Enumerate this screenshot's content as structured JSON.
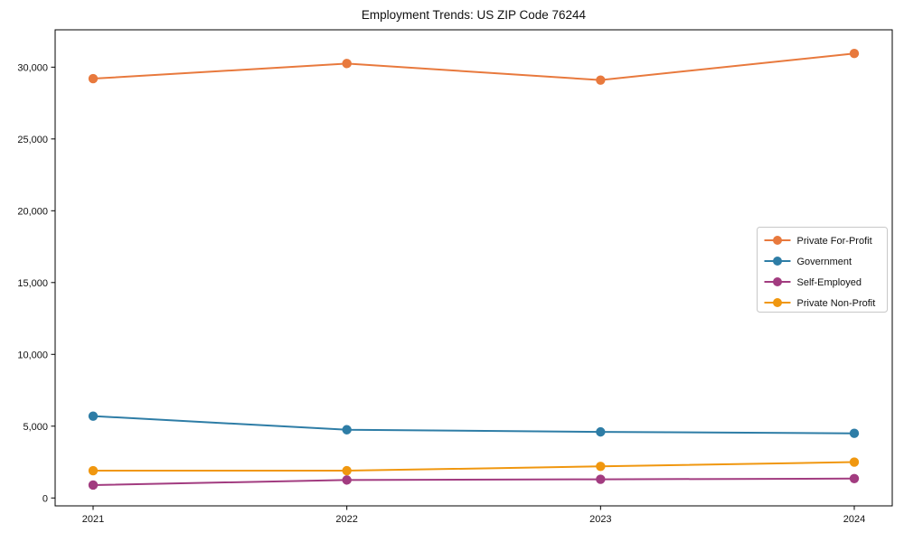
{
  "page": {
    "background": "#ffffff"
  },
  "chart_data": {
    "type": "line",
    "title": "Employment Trends: US ZIP Code 76244",
    "xlabel": "",
    "ylabel": "",
    "categories": [
      "2021",
      "2022",
      "2023",
      "2024"
    ],
    "series": [
      {
        "name": "Private For-Profit",
        "color": "#e8793d",
        "values": [
          29200,
          30250,
          29100,
          30950
        ]
      },
      {
        "name": "Government",
        "color": "#2e7da6",
        "values": [
          5700,
          4750,
          4600,
          4500
        ]
      },
      {
        "name": "Self-Employed",
        "color": "#a23c80",
        "values": [
          900,
          1250,
          1300,
          1350
        ]
      },
      {
        "name": "Private Non-Profit",
        "color": "#f0970f",
        "values": [
          1900,
          1900,
          2200,
          2500
        ]
      }
    ],
    "ylim": [
      -550,
      32600
    ],
    "yticks": [
      0,
      5000,
      10000,
      15000,
      20000,
      25000,
      30000
    ],
    "ytick_labels": [
      "0",
      "5,000",
      "10,000",
      "15,000",
      "20,000",
      "25,000",
      "30,000"
    ],
    "grid": false,
    "legend": {
      "position": "center-right",
      "labels": [
        "Private For-Profit",
        "Government",
        "Self-Employed",
        "Private Non-Profit"
      ]
    }
  }
}
